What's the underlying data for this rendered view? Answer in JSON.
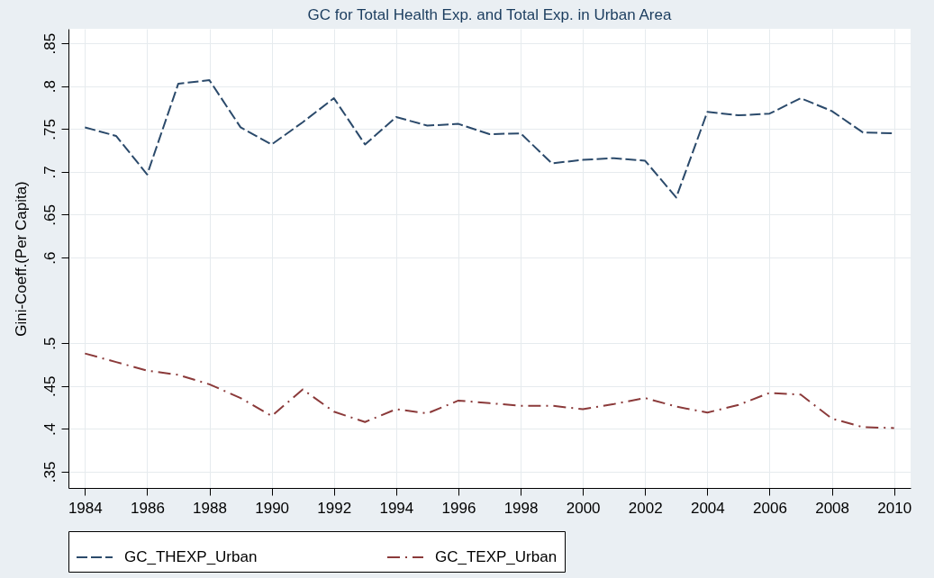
{
  "chart_data": {
    "type": "line",
    "title": "GC for Total Health Exp. and Total Exp. in Urban Area",
    "ylabel": "Gini-Coeff.(Per Capita)",
    "x": [
      1984,
      1985,
      1986,
      1987,
      1988,
      1989,
      1990,
      1991,
      1992,
      1993,
      1994,
      1995,
      1996,
      1997,
      1998,
      1999,
      2000,
      2001,
      2002,
      2003,
      2004,
      2005,
      2006,
      2007,
      2008,
      2009,
      2010
    ],
    "series": [
      {
        "name": "GC_THEXP_Urban",
        "color": "#2b4a6b",
        "line_style": "dashed",
        "values": [
          0.752,
          0.742,
          0.697,
          0.803,
          0.807,
          0.752,
          0.732,
          0.758,
          0.786,
          0.732,
          0.764,
          0.754,
          0.756,
          0.744,
          0.745,
          0.71,
          0.714,
          0.716,
          0.713,
          0.67,
          0.77,
          0.766,
          0.768,
          0.786,
          0.771,
          0.746,
          0.745
        ]
      },
      {
        "name": "GC_TEXP_Urban",
        "color": "#8b3a3a",
        "line_style": "dashdot",
        "values": [
          0.488,
          0.478,
          0.468,
          0.463,
          0.452,
          0.436,
          0.415,
          0.446,
          0.42,
          0.408,
          0.423,
          0.418,
          0.433,
          0.43,
          0.427,
          0.427,
          0.423,
          0.429,
          0.436,
          0.426,
          0.419,
          0.428,
          0.442,
          0.44,
          0.412,
          0.402,
          0.401
        ]
      }
    ],
    "xlim": [
      1983.47,
      2010.53
    ],
    "xticks": [
      1984,
      1986,
      1988,
      1990,
      1992,
      1994,
      1996,
      1998,
      2000,
      2002,
      2004,
      2006,
      2008,
      2010
    ],
    "ylim": [
      0.331,
      0.867
    ],
    "yticks": [
      {
        "value": 0.35,
        "label": ".35"
      },
      {
        "value": 0.4,
        "label": ".4"
      },
      {
        "value": 0.45,
        "label": ".45"
      },
      {
        "value": 0.5,
        "label": ".5"
      },
      {
        "value": 0.6,
        "label": ".6"
      },
      {
        "value": 0.65,
        "label": ".65"
      },
      {
        "value": 0.7,
        "label": ".7"
      },
      {
        "value": 0.75,
        "label": ".75"
      },
      {
        "value": 0.8,
        "label": ".8"
      },
      {
        "value": 0.85,
        "label": ".85"
      }
    ],
    "grid": true,
    "legend": "bottom"
  }
}
